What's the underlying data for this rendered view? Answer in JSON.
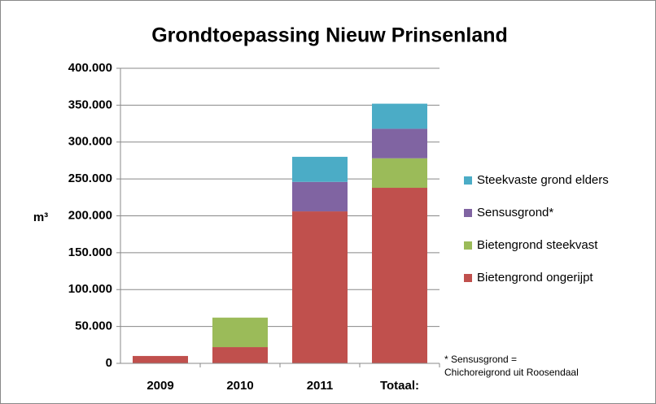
{
  "chart_data": {
    "type": "stacked_bar",
    "title": "Grondtoepassing Nieuw Prinsenland",
    "y_label": "m³",
    "categories": [
      "2009",
      "2010",
      "2011",
      "Totaal:"
    ],
    "series": [
      {
        "name": "Bietengrond ongerijpt",
        "color": "#c0504d",
        "values": [
          10000,
          22000,
          206000,
          238000
        ]
      },
      {
        "name": "Bietengrond steekvast",
        "color": "#9bbb59",
        "values": [
          0,
          40000,
          0,
          40000
        ]
      },
      {
        "name": "Sensusgrond*",
        "color": "#8064a2",
        "values": [
          0,
          0,
          40000,
          40000
        ]
      },
      {
        "name": "Steekvaste grond elders",
        "color": "#4bacc6",
        "values": [
          0,
          0,
          34000,
          34000
        ]
      }
    ],
    "ylim": [
      0,
      400000
    ],
    "yticks": [
      0,
      {
        "value": 50000,
        "label": "50.000"
      },
      {
        "value": 100000,
        "label": "100.000"
      },
      {
        "value": 150000,
        "label": "150.000"
      },
      {
        "value": 200000,
        "label": "200.000"
      },
      {
        "value": 250000,
        "label": "250.000"
      },
      {
        "value": 300000,
        "label": "300.000"
      },
      {
        "value": 350000,
        "label": "350.000"
      },
      {
        "value": 400000,
        "label": "400.000"
      }
    ],
    "grid": true,
    "legend": "right",
    "annotation": [
      "* Sensusgrond =",
      "Chichoreigrond uit Roosendaal"
    ]
  }
}
